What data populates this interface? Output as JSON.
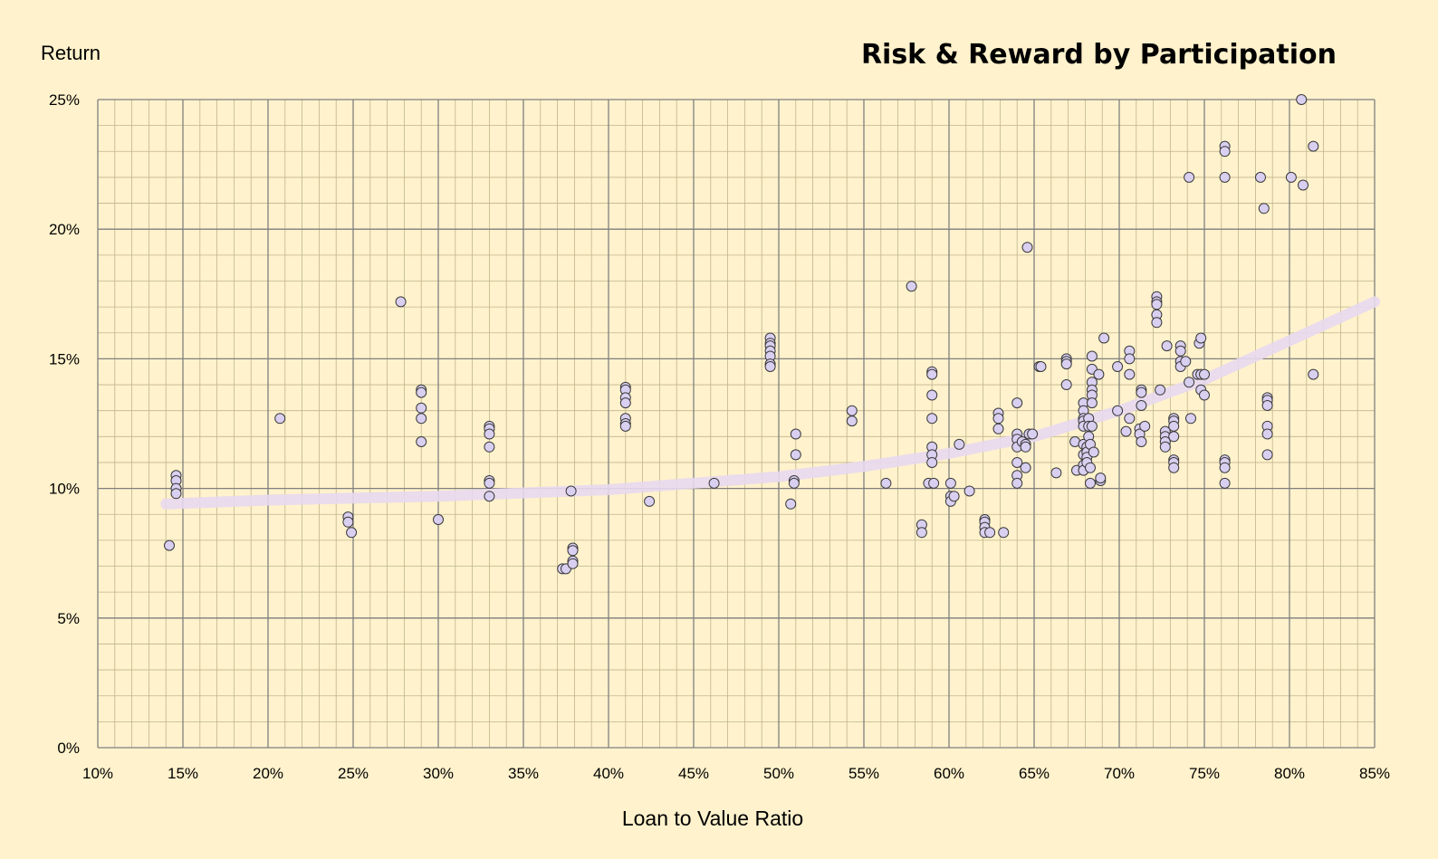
{
  "chart_data": {
    "type": "scatter",
    "title": "Risk & Reward by Participation",
    "xlabel": "Loan to Value Ratio",
    "ylabel": "Return",
    "xlim": [
      0.1,
      0.85
    ],
    "ylim": [
      0,
      0.25
    ],
    "x_ticks": [
      "10%",
      "15%",
      "20%",
      "25%",
      "30%",
      "35%",
      "40%",
      "45%",
      "50%",
      "55%",
      "60%",
      "65%",
      "70%",
      "75%",
      "80%",
      "85%"
    ],
    "y_ticks": [
      "0%",
      "5%",
      "10%",
      "15%",
      "20%",
      "25%"
    ],
    "grid": true,
    "legend": "none",
    "colors": {
      "background": "#fff2cc",
      "marker_fill": "#d9cff0",
      "marker_edge": "#3a3a3a",
      "trendline": "#e8d9f0",
      "major_grid": "#7f7f7f",
      "minor_grid": "#bfb58c"
    },
    "trendline": {
      "type": "exponential",
      "points": [
        [
          0.14,
          0.094
        ],
        [
          0.2,
          0.0955
        ],
        [
          0.3,
          0.097
        ],
        [
          0.4,
          0.0995
        ],
        [
          0.5,
          0.1045
        ],
        [
          0.55,
          0.1085
        ],
        [
          0.6,
          0.1135
        ],
        [
          0.65,
          0.12
        ],
        [
          0.7,
          0.13
        ],
        [
          0.75,
          0.142
        ],
        [
          0.8,
          0.157
        ],
        [
          0.85,
          0.172
        ]
      ]
    },
    "points": [
      [
        0.142,
        0.078
      ],
      [
        0.146,
        0.105
      ],
      [
        0.146,
        0.103
      ],
      [
        0.146,
        0.1
      ],
      [
        0.146,
        0.098
      ],
      [
        0.207,
        0.127
      ],
      [
        0.247,
        0.089
      ],
      [
        0.247,
        0.087
      ],
      [
        0.249,
        0.083
      ],
      [
        0.278,
        0.172
      ],
      [
        0.29,
        0.138
      ],
      [
        0.29,
        0.137
      ],
      [
        0.29,
        0.131
      ],
      [
        0.29,
        0.127
      ],
      [
        0.29,
        0.118
      ],
      [
        0.3,
        0.088
      ],
      [
        0.33,
        0.124
      ],
      [
        0.33,
        0.123
      ],
      [
        0.33,
        0.121
      ],
      [
        0.33,
        0.116
      ],
      [
        0.33,
        0.103
      ],
      [
        0.33,
        0.102
      ],
      [
        0.33,
        0.097
      ],
      [
        0.373,
        0.069
      ],
      [
        0.375,
        0.069
      ],
      [
        0.378,
        0.099
      ],
      [
        0.379,
        0.077
      ],
      [
        0.379,
        0.076
      ],
      [
        0.379,
        0.072
      ],
      [
        0.379,
        0.071
      ],
      [
        0.41,
        0.139
      ],
      [
        0.41,
        0.138
      ],
      [
        0.41,
        0.135
      ],
      [
        0.41,
        0.133
      ],
      [
        0.41,
        0.127
      ],
      [
        0.41,
        0.125
      ],
      [
        0.41,
        0.124
      ],
      [
        0.424,
        0.095
      ],
      [
        0.462,
        0.102
      ],
      [
        0.495,
        0.158
      ],
      [
        0.495,
        0.156
      ],
      [
        0.495,
        0.155
      ],
      [
        0.495,
        0.153
      ],
      [
        0.495,
        0.151
      ],
      [
        0.495,
        0.148
      ],
      [
        0.495,
        0.147
      ],
      [
        0.507,
        0.094
      ],
      [
        0.509,
        0.103
      ],
      [
        0.509,
        0.102
      ],
      [
        0.51,
        0.113
      ],
      [
        0.51,
        0.121
      ],
      [
        0.543,
        0.13
      ],
      [
        0.543,
        0.126
      ],
      [
        0.563,
        0.102
      ],
      [
        0.578,
        0.178
      ],
      [
        0.584,
        0.086
      ],
      [
        0.584,
        0.083
      ],
      [
        0.588,
        0.102
      ],
      [
        0.59,
        0.145
      ],
      [
        0.59,
        0.144
      ],
      [
        0.59,
        0.136
      ],
      [
        0.59,
        0.127
      ],
      [
        0.59,
        0.116
      ],
      [
        0.59,
        0.113
      ],
      [
        0.59,
        0.11
      ],
      [
        0.591,
        0.102
      ],
      [
        0.601,
        0.102
      ],
      [
        0.601,
        0.097
      ],
      [
        0.601,
        0.095
      ],
      [
        0.603,
        0.097
      ],
      [
        0.606,
        0.117
      ],
      [
        0.612,
        0.099
      ],
      [
        0.621,
        0.088
      ],
      [
        0.621,
        0.087
      ],
      [
        0.621,
        0.085
      ],
      [
        0.621,
        0.083
      ],
      [
        0.624,
        0.083
      ],
      [
        0.629,
        0.129
      ],
      [
        0.629,
        0.127
      ],
      [
        0.629,
        0.123
      ],
      [
        0.632,
        0.083
      ],
      [
        0.64,
        0.133
      ],
      [
        0.64,
        0.121
      ],
      [
        0.64,
        0.119
      ],
      [
        0.64,
        0.116
      ],
      [
        0.64,
        0.11
      ],
      [
        0.64,
        0.105
      ],
      [
        0.64,
        0.102
      ],
      [
        0.643,
        0.118
      ],
      [
        0.645,
        0.108
      ],
      [
        0.645,
        0.117
      ],
      [
        0.645,
        0.116
      ],
      [
        0.646,
        0.193
      ],
      [
        0.647,
        0.121
      ],
      [
        0.649,
        0.121
      ],
      [
        0.653,
        0.147
      ],
      [
        0.654,
        0.147
      ],
      [
        0.663,
        0.106
      ],
      [
        0.669,
        0.15
      ],
      [
        0.669,
        0.149
      ],
      [
        0.669,
        0.148
      ],
      [
        0.669,
        0.14
      ],
      [
        0.674,
        0.118
      ],
      [
        0.675,
        0.107
      ],
      [
        0.679,
        0.133
      ],
      [
        0.679,
        0.13
      ],
      [
        0.679,
        0.127
      ],
      [
        0.679,
        0.126
      ],
      [
        0.679,
        0.124
      ],
      [
        0.679,
        0.117
      ],
      [
        0.679,
        0.113
      ],
      [
        0.679,
        0.109
      ],
      [
        0.679,
        0.107
      ],
      [
        0.681,
        0.116
      ],
      [
        0.681,
        0.114
      ],
      [
        0.681,
        0.112
      ],
      [
        0.681,
        0.11
      ],
      [
        0.682,
        0.127
      ],
      [
        0.682,
        0.124
      ],
      [
        0.682,
        0.12
      ],
      [
        0.683,
        0.117
      ],
      [
        0.683,
        0.108
      ],
      [
        0.683,
        0.102
      ],
      [
        0.684,
        0.151
      ],
      [
        0.684,
        0.146
      ],
      [
        0.684,
        0.141
      ],
      [
        0.684,
        0.138
      ],
      [
        0.684,
        0.136
      ],
      [
        0.684,
        0.133
      ],
      [
        0.684,
        0.124
      ],
      [
        0.685,
        0.114
      ],
      [
        0.688,
        0.144
      ],
      [
        0.689,
        0.103
      ],
      [
        0.689,
        0.104
      ],
      [
        0.691,
        0.158
      ],
      [
        0.699,
        0.147
      ],
      [
        0.699,
        0.13
      ],
      [
        0.704,
        0.122
      ],
      [
        0.706,
        0.153
      ],
      [
        0.706,
        0.15
      ],
      [
        0.706,
        0.144
      ],
      [
        0.706,
        0.127
      ],
      [
        0.712,
        0.123
      ],
      [
        0.712,
        0.121
      ],
      [
        0.713,
        0.138
      ],
      [
        0.713,
        0.137
      ],
      [
        0.713,
        0.132
      ],
      [
        0.713,
        0.118
      ],
      [
        0.715,
        0.124
      ],
      [
        0.722,
        0.174
      ],
      [
        0.722,
        0.172
      ],
      [
        0.722,
        0.171
      ],
      [
        0.722,
        0.167
      ],
      [
        0.722,
        0.164
      ],
      [
        0.724,
        0.138
      ],
      [
        0.727,
        0.122
      ],
      [
        0.727,
        0.12
      ],
      [
        0.727,
        0.118
      ],
      [
        0.727,
        0.116
      ],
      [
        0.728,
        0.155
      ],
      [
        0.732,
        0.127
      ],
      [
        0.732,
        0.126
      ],
      [
        0.732,
        0.124
      ],
      [
        0.732,
        0.12
      ],
      [
        0.732,
        0.111
      ],
      [
        0.732,
        0.11
      ],
      [
        0.732,
        0.108
      ],
      [
        0.736,
        0.155
      ],
      [
        0.736,
        0.153
      ],
      [
        0.736,
        0.149
      ],
      [
        0.736,
        0.147
      ],
      [
        0.739,
        0.149
      ],
      [
        0.741,
        0.22
      ],
      [
        0.741,
        0.141
      ],
      [
        0.742,
        0.127
      ],
      [
        0.746,
        0.144
      ],
      [
        0.747,
        0.156
      ],
      [
        0.748,
        0.158
      ],
      [
        0.748,
        0.144
      ],
      [
        0.748,
        0.138
      ],
      [
        0.75,
        0.136
      ],
      [
        0.75,
        0.144
      ],
      [
        0.762,
        0.232
      ],
      [
        0.762,
        0.23
      ],
      [
        0.762,
        0.22
      ],
      [
        0.762,
        0.111
      ],
      [
        0.762,
        0.11
      ],
      [
        0.762,
        0.108
      ],
      [
        0.762,
        0.102
      ],
      [
        0.783,
        0.22
      ],
      [
        0.785,
        0.208
      ],
      [
        0.787,
        0.135
      ],
      [
        0.787,
        0.134
      ],
      [
        0.787,
        0.132
      ],
      [
        0.787,
        0.124
      ],
      [
        0.787,
        0.121
      ],
      [
        0.787,
        0.113
      ],
      [
        0.801,
        0.22
      ],
      [
        0.807,
        0.25
      ],
      [
        0.808,
        0.217
      ],
      [
        0.814,
        0.232
      ],
      [
        0.814,
        0.144
      ]
    ]
  }
}
